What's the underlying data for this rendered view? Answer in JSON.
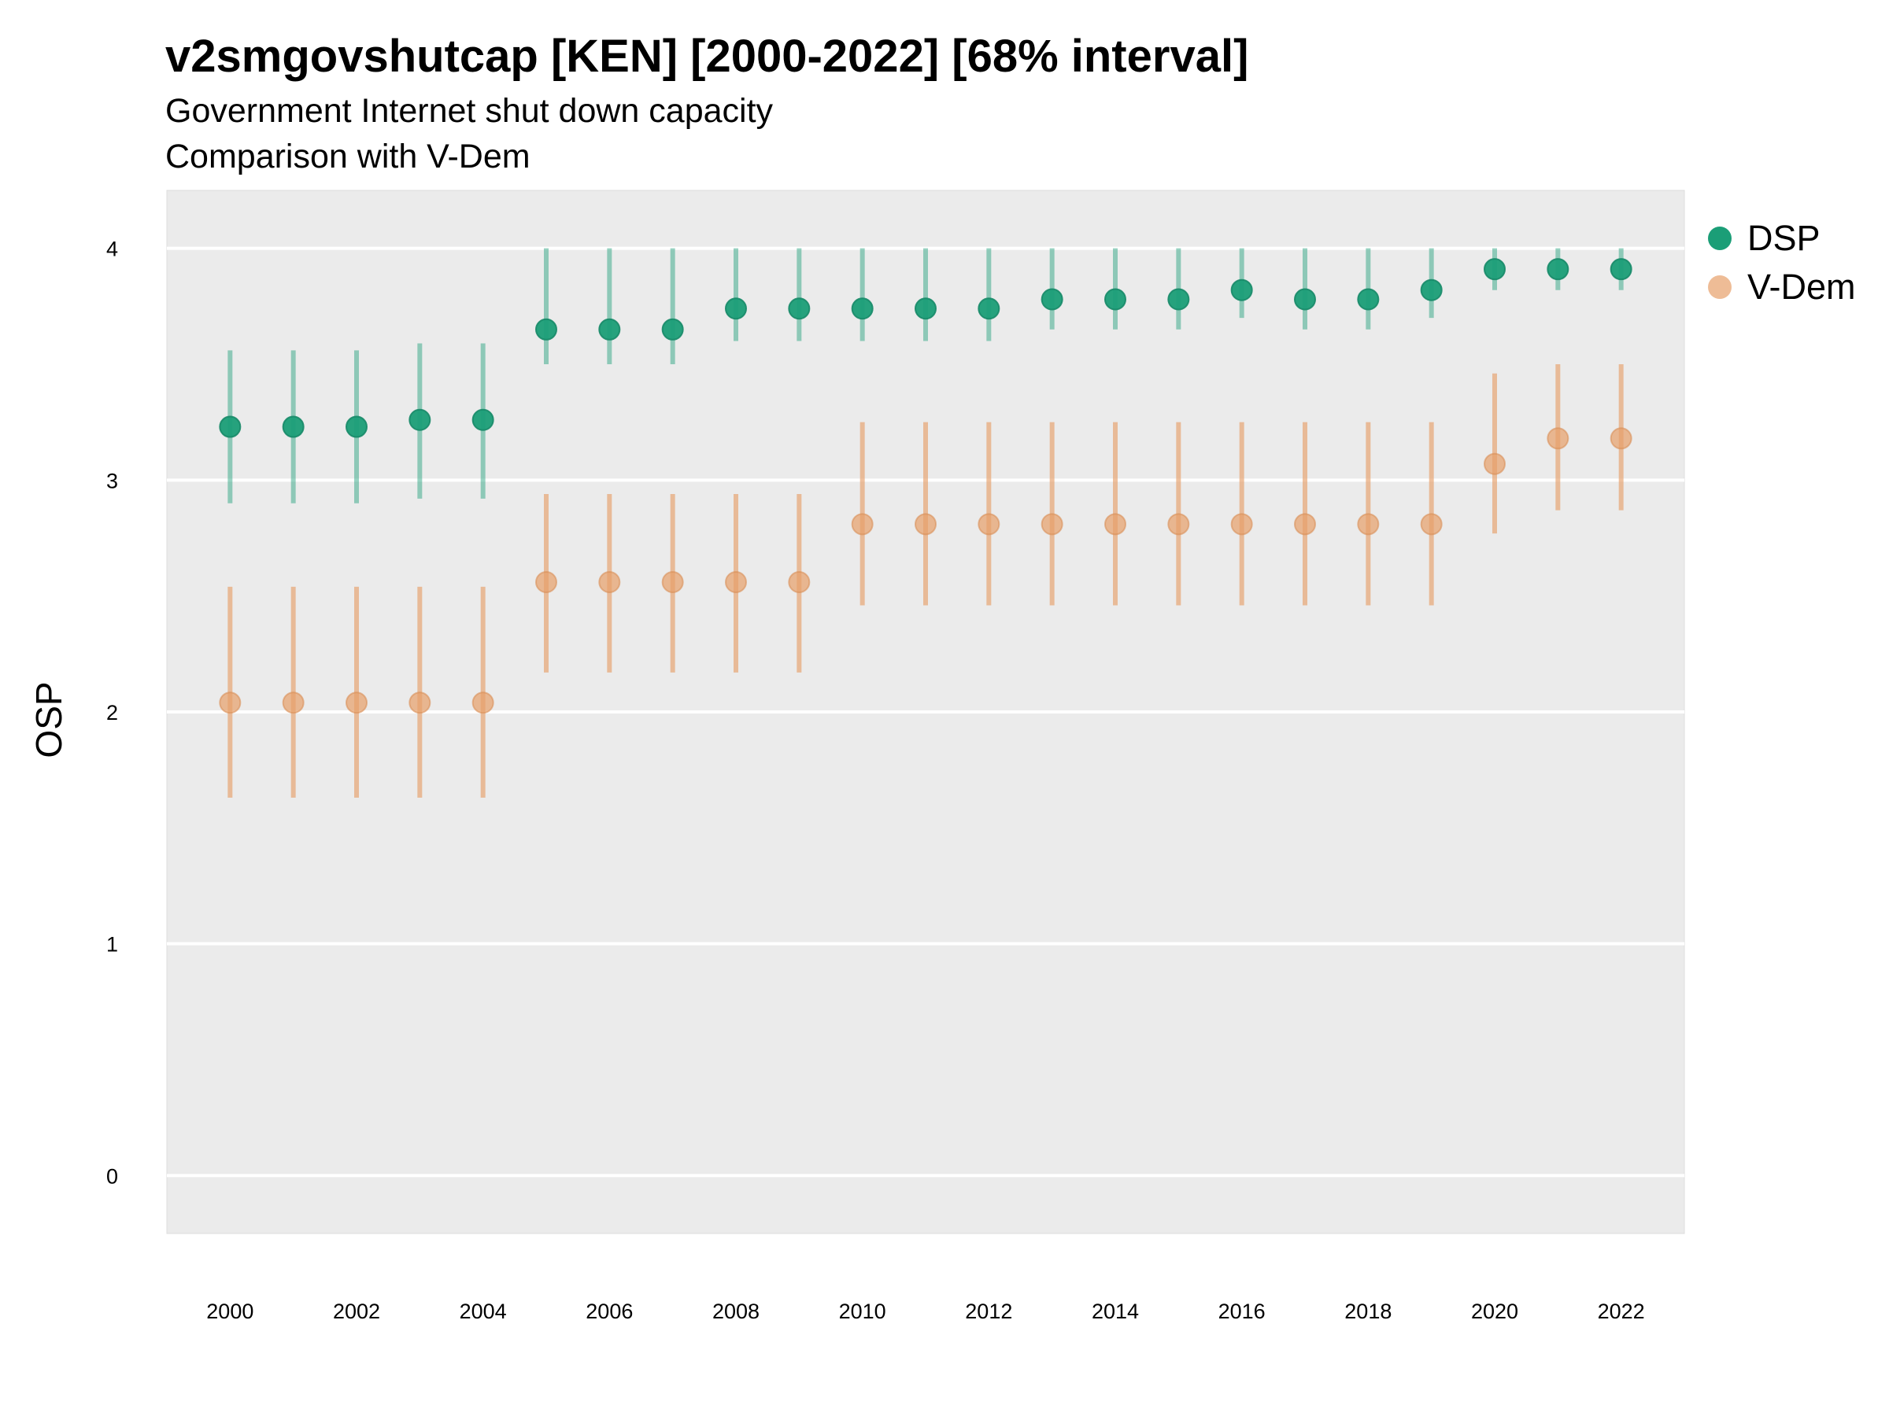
{
  "chart_data": {
    "type": "scatter",
    "title": "v2smgovshutcap [KEN] [2000-2022] [68% interval]",
    "subtitle_lines": [
      "Government Internet shut down capacity",
      "Comparison with V-Dem"
    ],
    "xlabel": "",
    "ylabel": "OSP",
    "x": [
      2000,
      2001,
      2002,
      2003,
      2004,
      2005,
      2006,
      2007,
      2008,
      2009,
      2010,
      2011,
      2012,
      2013,
      2014,
      2015,
      2016,
      2017,
      2018,
      2019,
      2020,
      2021,
      2022
    ],
    "x_tick_labels": [
      "2000",
      "2002",
      "2004",
      "2006",
      "2008",
      "2010",
      "2012",
      "2014",
      "2016",
      "2018",
      "2020",
      "2022"
    ],
    "y_ticks": [
      0,
      1,
      2,
      3,
      4
    ],
    "y_tick_labels": [
      "0",
      "1",
      "2",
      "3",
      "4"
    ],
    "xlim": [
      1999,
      2023
    ],
    "ylim": [
      -0.25,
      4.25
    ],
    "grid": true,
    "legend_position": "right",
    "series": [
      {
        "name": "DSP",
        "color": "#1b9e77",
        "values": [
          3.23,
          3.23,
          3.23,
          3.26,
          3.26,
          3.65,
          3.65,
          3.65,
          3.74,
          3.74,
          3.74,
          3.74,
          3.74,
          3.78,
          3.78,
          3.78,
          3.82,
          3.78,
          3.78,
          3.82,
          3.91,
          3.91,
          3.91
        ],
        "lower": [
          2.9,
          2.9,
          2.9,
          2.92,
          2.92,
          3.5,
          3.5,
          3.5,
          3.6,
          3.6,
          3.6,
          3.6,
          3.6,
          3.65,
          3.65,
          3.65,
          3.7,
          3.65,
          3.65,
          3.7,
          3.82,
          3.82,
          3.82
        ],
        "upper": [
          3.56,
          3.56,
          3.56,
          3.59,
          3.59,
          4.0,
          4.0,
          4.0,
          4.0,
          4.0,
          4.0,
          4.0,
          4.0,
          4.0,
          4.0,
          4.0,
          4.0,
          4.0,
          4.0,
          4.0,
          4.0,
          4.0,
          4.0
        ]
      },
      {
        "name": "V-Dem",
        "color": "#e7a06a",
        "values": [
          2.04,
          2.04,
          2.04,
          2.04,
          2.04,
          2.56,
          2.56,
          2.56,
          2.56,
          2.56,
          2.81,
          2.81,
          2.81,
          2.81,
          2.81,
          2.81,
          2.81,
          2.81,
          2.81,
          2.81,
          3.07,
          3.18,
          3.18
        ],
        "lower": [
          1.63,
          1.63,
          1.63,
          1.63,
          1.63,
          2.17,
          2.17,
          2.17,
          2.17,
          2.17,
          2.46,
          2.46,
          2.46,
          2.46,
          2.46,
          2.46,
          2.46,
          2.46,
          2.46,
          2.46,
          2.77,
          2.87,
          2.87
        ],
        "upper": [
          2.54,
          2.54,
          2.54,
          2.54,
          2.54,
          2.94,
          2.94,
          2.94,
          2.94,
          2.94,
          3.25,
          3.25,
          3.25,
          3.25,
          3.25,
          3.25,
          3.25,
          3.25,
          3.25,
          3.25,
          3.46,
          3.5,
          3.5
        ]
      }
    ]
  }
}
